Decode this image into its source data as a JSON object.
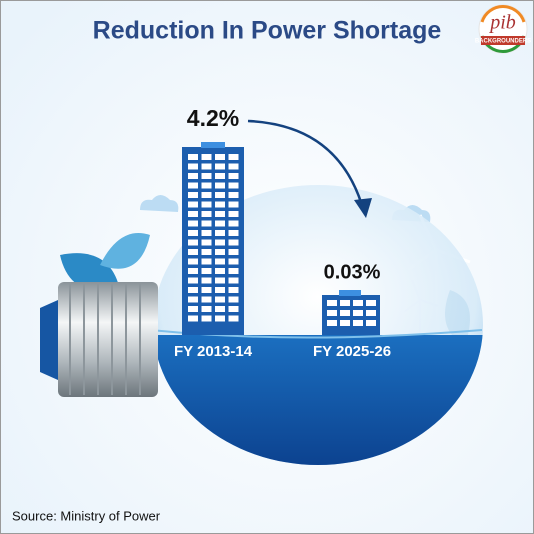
{
  "header": {
    "title": "Reduction In Power Shortage",
    "logo_text": "pib",
    "logo_subtext": "BACKGROUNDERS"
  },
  "items": [
    {
      "label": "FY 2013-14",
      "value": "4.2%"
    },
    {
      "label": "FY 2025-26",
      "value": "0.03%"
    }
  ],
  "footer": {
    "source": "Source: Ministry of Power"
  }
}
